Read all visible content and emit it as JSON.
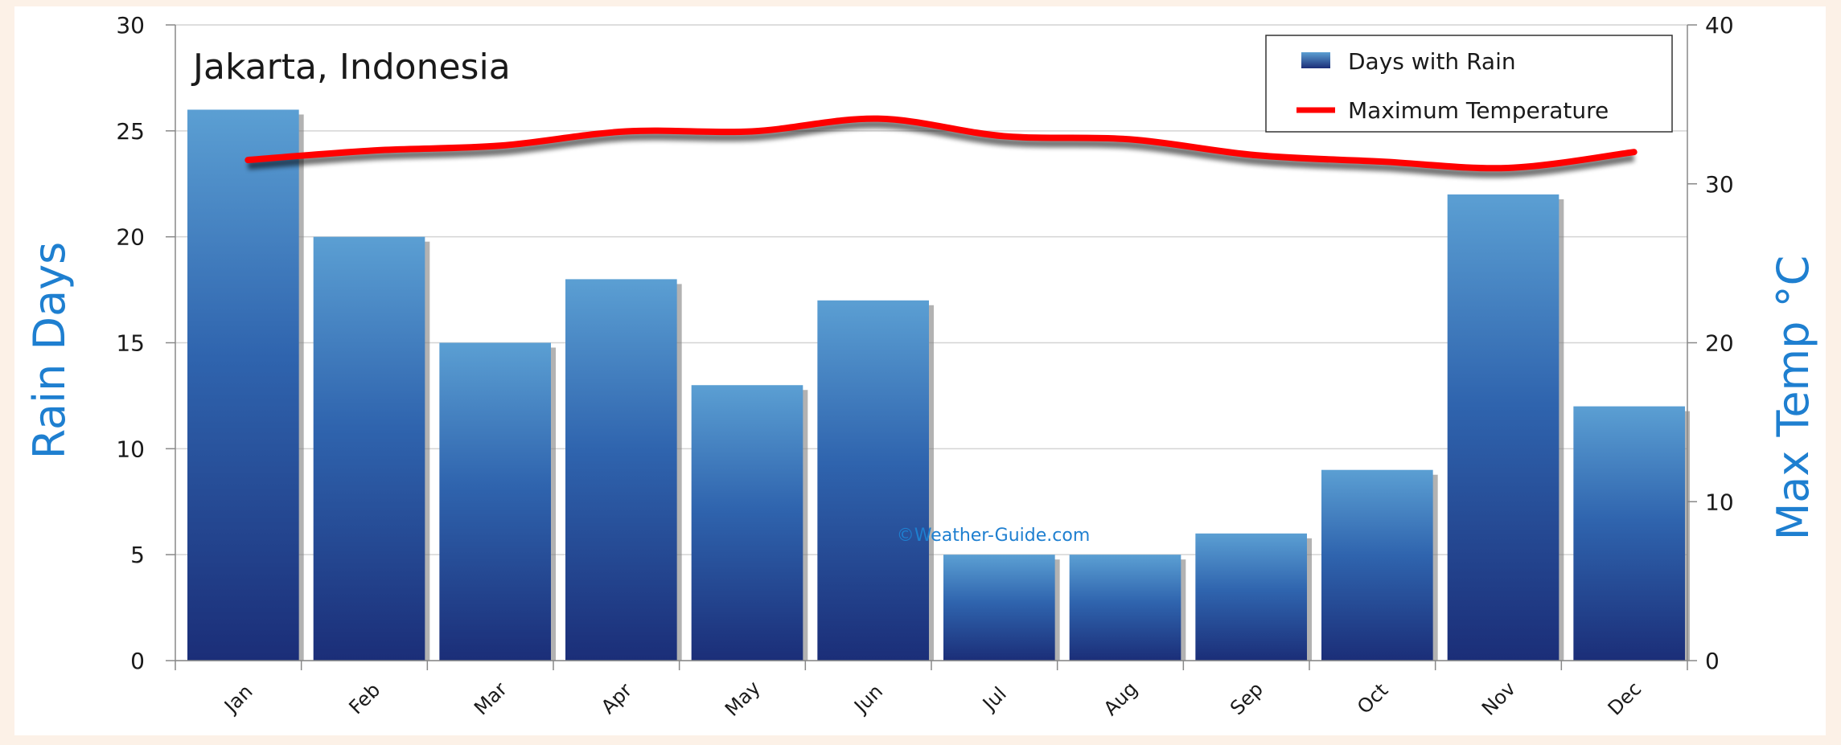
{
  "chart_data": {
    "type": "bar",
    "title": "Jakarta, Indonesia",
    "watermark": "©Weather-Guide.com",
    "categories": [
      "Jan",
      "Feb",
      "Mar",
      "Apr",
      "May",
      "Jun",
      "Jul",
      "Aug",
      "Sep",
      "Oct",
      "Nov",
      "Dec"
    ],
    "series": [
      {
        "name": "Days with Rain",
        "type": "bar",
        "axis": "left",
        "values": [
          26,
          20,
          15,
          18,
          13,
          17,
          5,
          5,
          6,
          9,
          22,
          12
        ]
      },
      {
        "name": "Maximum Temperature",
        "type": "line",
        "axis": "right",
        "values": [
          31.5,
          32.1,
          32.4,
          33.3,
          33.3,
          34.1,
          33.0,
          32.8,
          31.8,
          31.4,
          31.0,
          32.0
        ]
      }
    ],
    "ylabel": "Rain Days",
    "ylim": [
      0,
      30
    ],
    "yticks": [
      0,
      5,
      10,
      15,
      20,
      25,
      30
    ],
    "y2label": "Max Temp °C",
    "y2lim": [
      0,
      40
    ],
    "y2ticks": [
      0,
      10,
      20,
      30,
      40
    ],
    "grid": true,
    "legend_position": "top-right",
    "colors": {
      "bar_top": "#5a9fd2",
      "bar_bottom": "#1c2f78",
      "line": "#ff0000",
      "axis_title": "#1e7fd0",
      "background": "#fcf1e7",
      "plot_background": "#ffffff"
    }
  }
}
